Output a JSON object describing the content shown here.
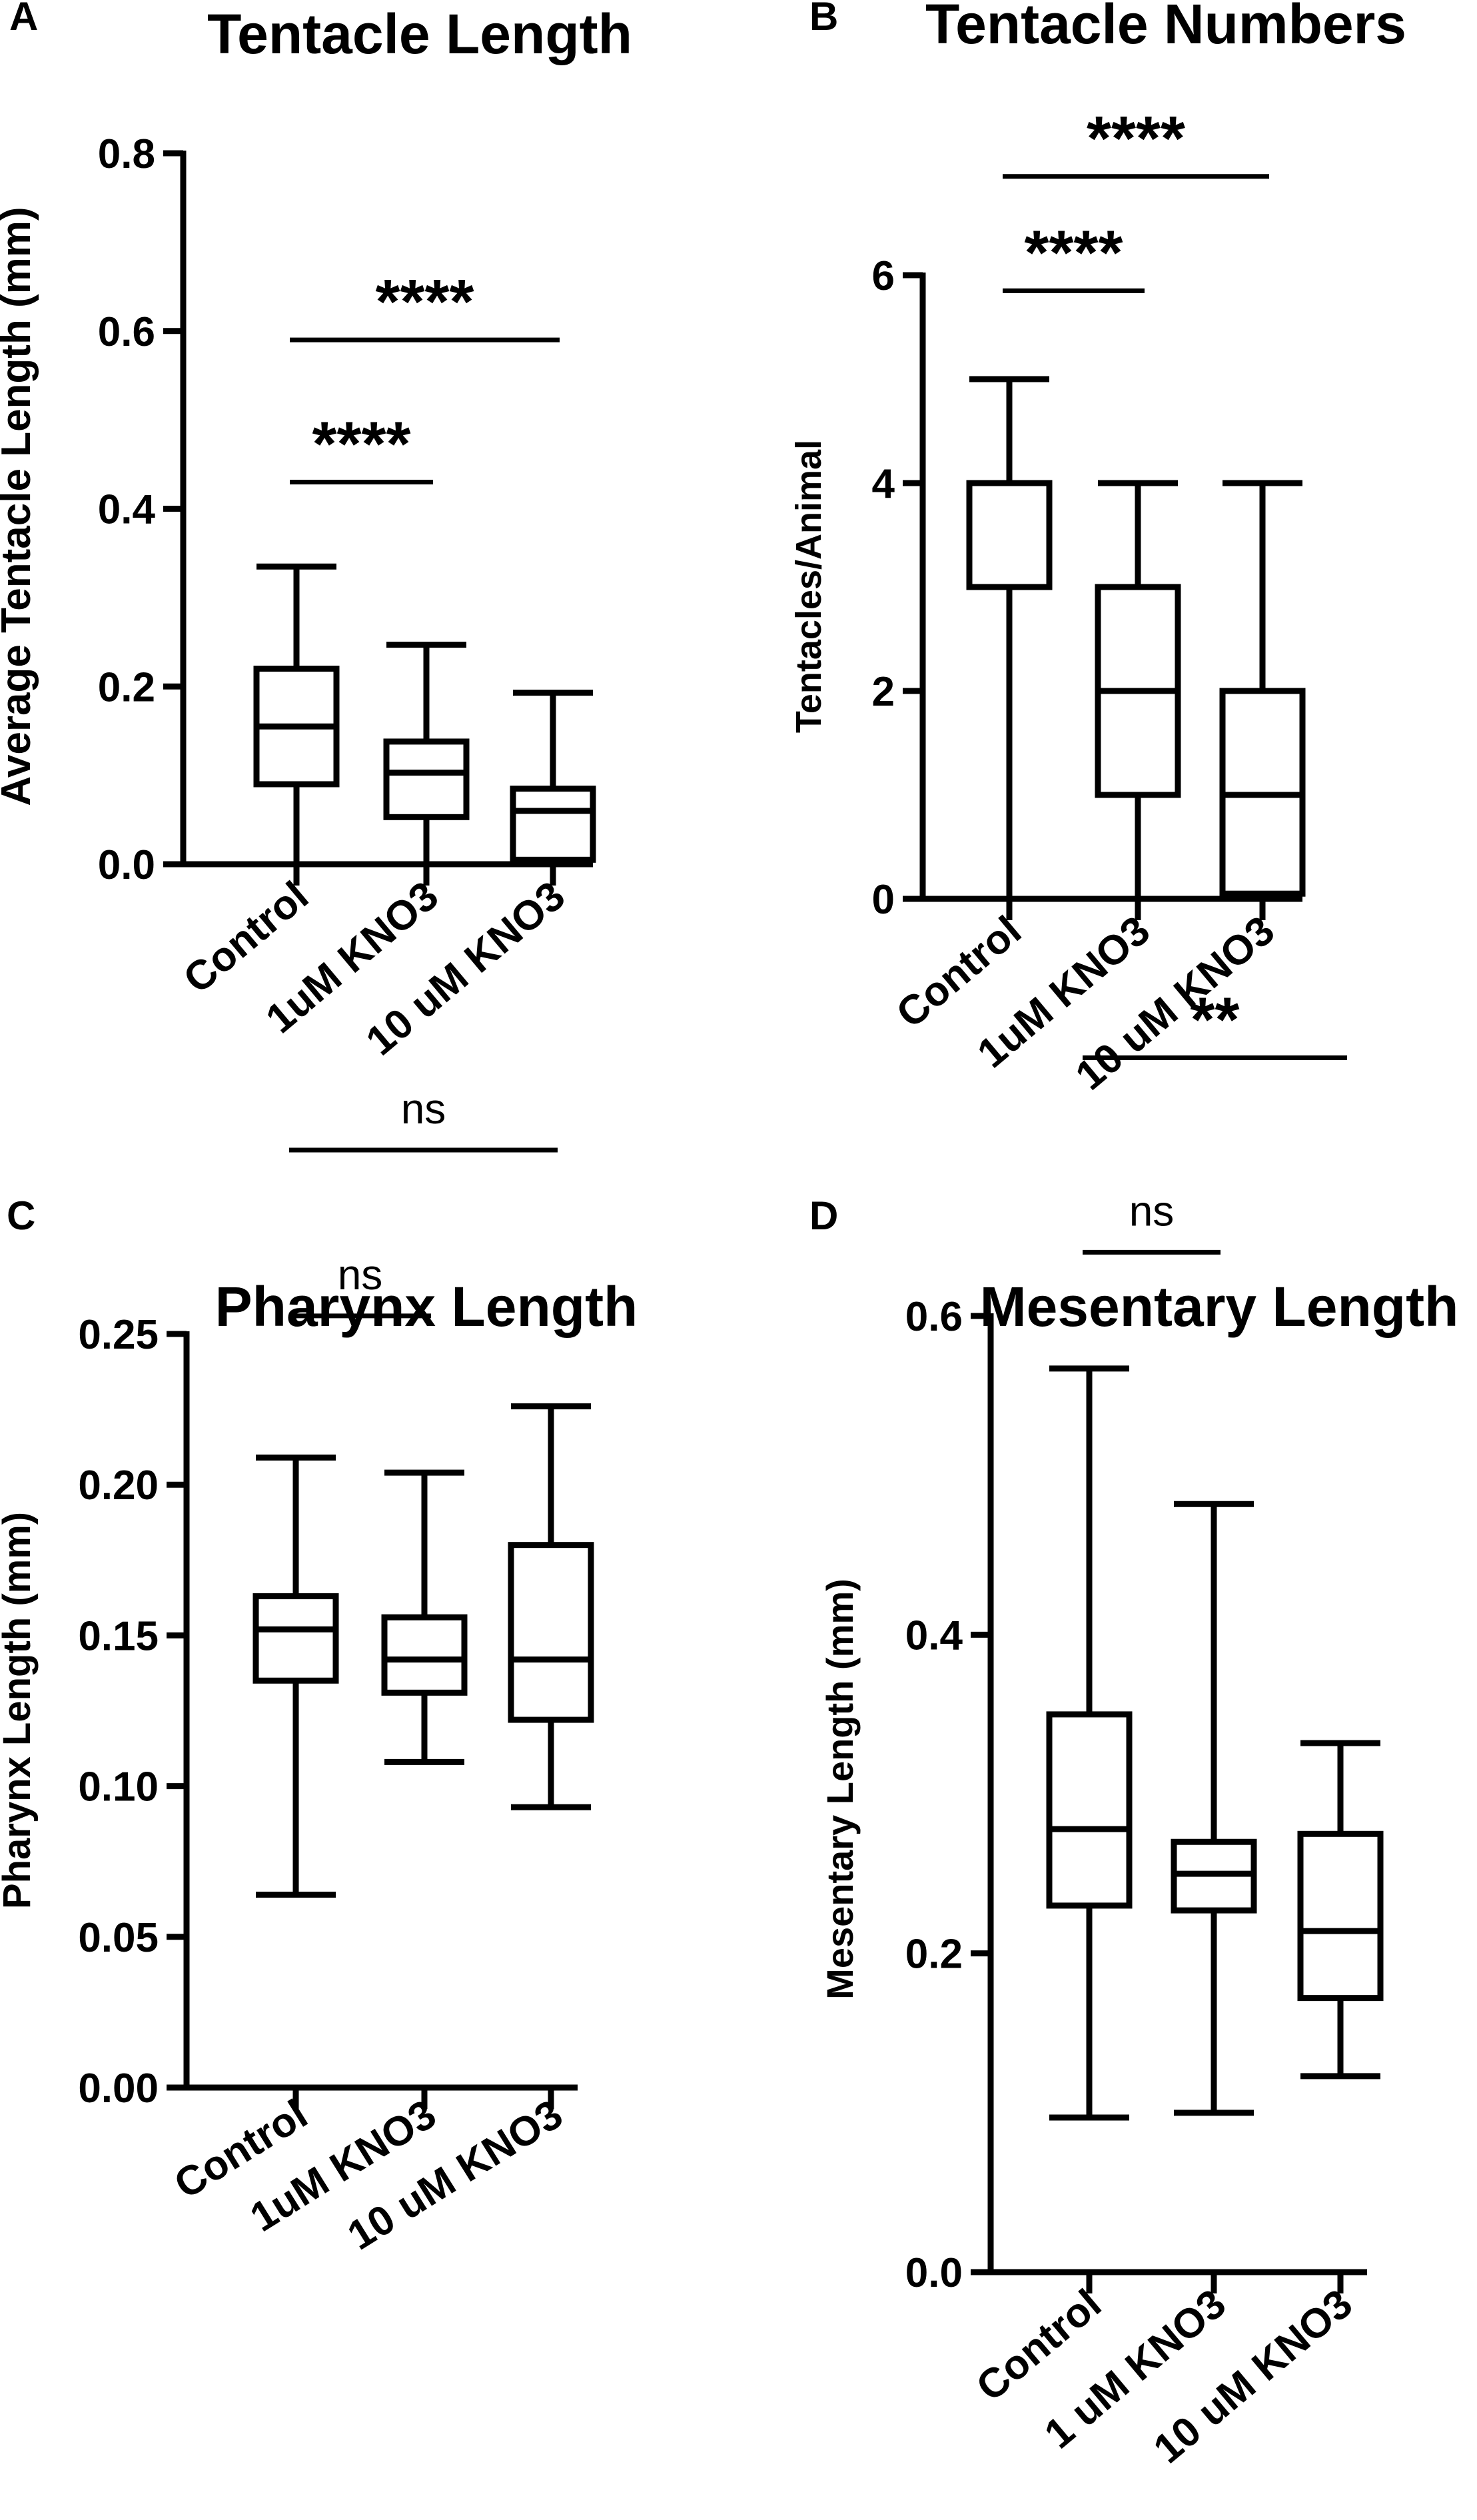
{
  "chart_data": [
    {
      "panel": "A",
      "type": "box",
      "title": "Tentacle Length",
      "ylabel": "Average Tentacle Length (mm)",
      "ylim": [
        0,
        0.8
      ],
      "yticks": [
        "0.0",
        "0.2",
        "0.4",
        "0.6",
        "0.8"
      ],
      "categories": [
        "Control",
        "1uM KNO3",
        "10 uM KNO3"
      ],
      "boxes": [
        {
          "min": 0.0,
          "q1": 0.09,
          "median": 0.155,
          "q3": 0.22,
          "max": 0.335
        },
        {
          "min": 0.0,
          "q1": 0.053,
          "median": 0.103,
          "q3": 0.138,
          "max": 0.247
        },
        {
          "min": 0.0,
          "q1": 0.005,
          "median": 0.06,
          "q3": 0.085,
          "max": 0.193
        }
      ],
      "significance": [
        {
          "from": 0,
          "to": 1,
          "label": "****",
          "y": 0.43
        },
        {
          "from": 0,
          "to": 2,
          "label": "****",
          "y": 0.59
        }
      ]
    },
    {
      "panel": "B",
      "type": "box",
      "title": "Tentacle Numbers",
      "ylabel": "Tentacles/Animal",
      "ylim": [
        0,
        6
      ],
      "yticks": [
        "0",
        "2",
        "4",
        "6"
      ],
      "categories": [
        "Control",
        "1uM KNO3",
        "10 uM KNO3"
      ],
      "boxes": [
        {
          "min": 0,
          "q1": 3.0,
          "median": 4.0,
          "q3": 4.0,
          "max": 5.0
        },
        {
          "min": 0,
          "q1": 1.0,
          "median": 2.0,
          "q3": 3.0,
          "max": 4.0
        },
        {
          "min": 0,
          "q1": 0.05,
          "median": 1.0,
          "q3": 2.0,
          "max": 4.0
        }
      ],
      "significance": [
        {
          "from": 0,
          "to": 1,
          "label": "****",
          "y": 5.85
        },
        {
          "from": 0,
          "to": 2,
          "label": "****",
          "y": 6.95
        }
      ]
    },
    {
      "panel": "C",
      "type": "box",
      "title": "Pharynx Length",
      "ylabel": "Pharynx Length (mm)",
      "ylim": [
        0,
        0.25
      ],
      "yticks": [
        "0.00",
        "0.05",
        "0.10",
        "0.15",
        "0.20",
        "0.25"
      ],
      "categories": [
        "Control",
        "1uM KNO3",
        "10 uM KNO3"
      ],
      "boxes": [
        {
          "min": 0.064,
          "q1": 0.135,
          "median": 0.152,
          "q3": 0.163,
          "max": 0.209
        },
        {
          "min": 0.108,
          "q1": 0.131,
          "median": 0.142,
          "q3": 0.156,
          "max": 0.204
        },
        {
          "min": 0.093,
          "q1": 0.122,
          "median": 0.142,
          "q3": 0.18,
          "max": 0.226
        }
      ],
      "significance": [
        {
          "from": 0,
          "to": 1,
          "label": "ns",
          "y": 0.256
        },
        {
          "from": 0,
          "to": 2,
          "label": "ns",
          "y": 0.311
        }
      ]
    },
    {
      "panel": "D",
      "type": "box",
      "title": "Mesentary Length",
      "ylabel": "Mesentary Length (mm)",
      "ylim": [
        0,
        0.6
      ],
      "yticks": [
        "0.0",
        "0.2",
        "0.4",
        "0.6"
      ],
      "categories": [
        "Control",
        "1 uM KNO3",
        "10 uM KNO3"
      ],
      "boxes": [
        {
          "min": 0.097,
          "q1": 0.23,
          "median": 0.278,
          "q3": 0.35,
          "max": 0.567
        },
        {
          "min": 0.1,
          "q1": 0.227,
          "median": 0.25,
          "q3": 0.27,
          "max": 0.482
        },
        {
          "min": 0.123,
          "q1": 0.172,
          "median": 0.214,
          "q3": 0.275,
          "max": 0.332
        }
      ],
      "significance": [
        {
          "from": 0,
          "to": 1,
          "label": "ns",
          "y": 0.64
        },
        {
          "from": 0,
          "to": 2,
          "label": "**",
          "y": 0.762
        }
      ]
    }
  ]
}
